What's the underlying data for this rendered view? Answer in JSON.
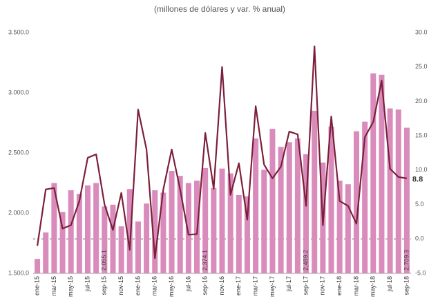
{
  "chart_data": {
    "type": "bar-line",
    "subtitle": "(millones de dólares y var. % anual)",
    "categories": [
      "ene-15",
      null,
      "mar-15",
      null,
      "may-15",
      null,
      "jul-15",
      null,
      "sep-15",
      null,
      "nov-15",
      null,
      "ene-16",
      null,
      "mar-16",
      null,
      "may-16",
      null,
      "jul-16",
      null,
      "sep-16",
      null,
      "nov-16",
      null,
      "ene-17",
      null,
      "mar-17",
      null,
      "may-17",
      null,
      "jul-17",
      null,
      "sep-17",
      null,
      "nov-17",
      null,
      "ene-18",
      null,
      "mar-18",
      null,
      "may-18",
      null,
      "jul-18",
      null,
      "sep-18"
    ],
    "series": [
      {
        "type": "bar",
        "color": "#d98cbb",
        "values": [
          1620,
          1840,
          2250,
          2010,
          2190,
          2160,
          2230,
          2250,
          2055.1,
          2070,
          1890,
          2200,
          1930,
          2080,
          2190,
          2170,
          2350,
          2310,
          2250,
          2270,
          2374.1,
          2210,
          2370,
          2330,
          2150,
          2140,
          2620,
          2360,
          2700,
          2550,
          2590,
          2620,
          2489.2,
          2850,
          2420,
          2720,
          2270,
          2240,
          2680,
          2760,
          3160,
          3150,
          2870,
          2860,
          2709.3
        ],
        "value_labels": [
          null,
          null,
          null,
          null,
          null,
          null,
          null,
          null,
          "2,055.1",
          null,
          null,
          null,
          null,
          null,
          null,
          null,
          null,
          null,
          null,
          null,
          "2,374.1",
          null,
          null,
          null,
          null,
          null,
          null,
          null,
          null,
          null,
          null,
          null,
          "2,489.2",
          null,
          null,
          null,
          null,
          null,
          null,
          null,
          null,
          null,
          null,
          null,
          "2,709.3"
        ]
      },
      {
        "type": "line",
        "axis": "y2",
        "color": "#7b1f3a",
        "values": [
          -1,
          7.2,
          7.4,
          1.5,
          2,
          5.5,
          11.8,
          12.3,
          5,
          1.3,
          6.7,
          -1.6,
          18.8,
          13,
          -2.8,
          7.2,
          13,
          7.2,
          0.6,
          0.7,
          15.4,
          7.3,
          25,
          6.4,
          11,
          2.8,
          19.3,
          10.8,
          8.8,
          10.5,
          15.6,
          15.2,
          4.8,
          28,
          2,
          17.8,
          5.5,
          4.8,
          2.2,
          14.8,
          17,
          23,
          10.2,
          9,
          8.8
        ]
      }
    ],
    "ylim": [
      1500,
      3500
    ],
    "yticks": [
      {
        "value": 1500,
        "label": "1.500.0"
      },
      {
        "value": 2000,
        "label": "2.000.0"
      },
      {
        "value": 2500,
        "label": "2.500.0"
      },
      {
        "value": 3000,
        "label": "3.000.0"
      },
      {
        "value": 3500,
        "label": "3.500.0"
      }
    ],
    "y2lim": [
      -5,
      30
    ],
    "y2ticks": [
      {
        "value": -5,
        "label": "-5.0"
      },
      {
        "value": 0,
        "label": "0.0"
      },
      {
        "value": 5,
        "label": "5.0"
      },
      {
        "value": 10,
        "label": "10.0"
      },
      {
        "value": 15,
        "label": "15.0"
      },
      {
        "value": 20,
        "label": "20.0"
      },
      {
        "value": 25,
        "label": "25.0"
      },
      {
        "value": 30,
        "label": "30.0"
      }
    ]
  }
}
